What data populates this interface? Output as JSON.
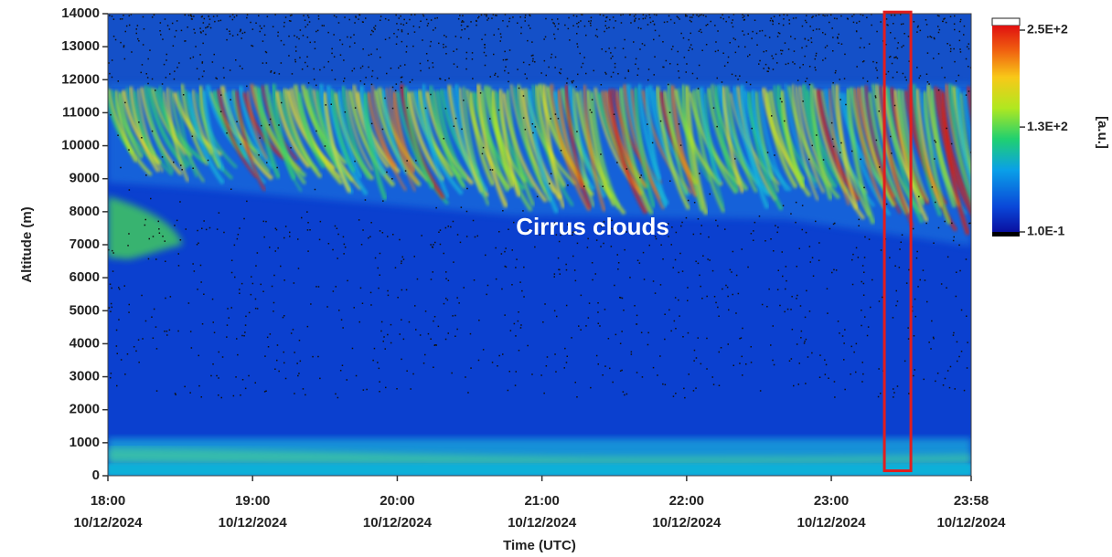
{
  "chart_data": {
    "type": "heatmap",
    "xlabel": "Time (UTC)",
    "ylabel": "Altitude (m)",
    "xlim": [
      "10/12/2024 18:00",
      "10/12/2024 23:58"
    ],
    "xticks": [
      {
        "value": "10/12/2024 18:00",
        "label": [
          "18:00",
          "10/12/2024"
        ]
      },
      {
        "value": "10/12/2024 19:00",
        "label": [
          "19:00",
          "10/12/2024"
        ]
      },
      {
        "value": "10/12/2024 20:00",
        "label": [
          "20:00",
          "10/12/2024"
        ]
      },
      {
        "value": "10/12/2024 21:00",
        "label": [
          "21:00",
          "10/12/2024"
        ]
      },
      {
        "value": "10/12/2024 22:00",
        "label": [
          "22:00",
          "10/12/2024"
        ]
      },
      {
        "value": "10/12/2024 23:00",
        "label": [
          "23:00",
          "10/12/2024"
        ]
      },
      {
        "value": "10/12/2024 23:58",
        "label": [
          "23:58",
          "10/12/2024"
        ]
      }
    ],
    "ylim": [
      0,
      14000
    ],
    "yticks": [
      0,
      1000,
      2000,
      3000,
      4000,
      5000,
      6000,
      7000,
      8000,
      9000,
      10000,
      11000,
      12000,
      13000,
      14000
    ],
    "colorbar": {
      "label": "[a.u.]",
      "clim": [
        0.1,
        250
      ],
      "ticks": [
        {
          "value": 250,
          "label": "2.5E+2"
        },
        {
          "value": 130,
          "label": "1.3E+2"
        },
        {
          "value": 0.1,
          "label": "1.0E-1"
        }
      ]
    },
    "annotations": [
      {
        "text": "Cirrus clouds"
      }
    ],
    "highlight": {
      "x": [
        "10/12/2024 23:22",
        "10/12/2024 23:33"
      ],
      "y": [
        150,
        14050
      ],
      "color": "#e21d1d"
    }
  }
}
